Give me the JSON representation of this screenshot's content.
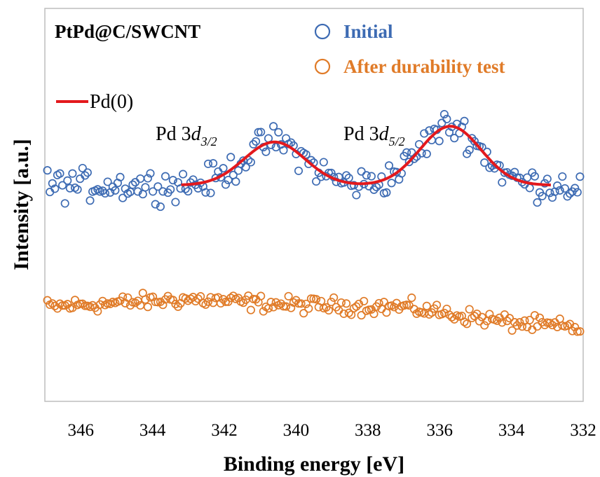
{
  "chart_data": {
    "type": "scatter",
    "sample_label": "PtPd@C/SWCNT",
    "xlabel": "Binding energy [eV]",
    "ylabel": "Intensity [a.u.]",
    "xlim": [
      347,
      332
    ],
    "x_reversed": true,
    "ylim": [
      0,
      100
    ],
    "y_ticks_shown": false,
    "x_ticks": [
      "346",
      "344",
      "342",
      "340",
      "338",
      "336",
      "334",
      "332"
    ],
    "x_tick_values": [
      346,
      344,
      342,
      340,
      338,
      336,
      334,
      332
    ],
    "grid": false,
    "legend_position": "top-right",
    "colors": {
      "initial": "#3d6bb3",
      "after": "#e07b28",
      "fit": "#e3191d"
    },
    "series": [
      {
        "name": "Initial",
        "marker": "open-circle",
        "baseline": 55,
        "noise": 3.5,
        "x_range": [
          347,
          332
        ],
        "step": 0.07,
        "peaks": [
          {
            "center": 340.6,
            "height": 11,
            "width": 0.85
          },
          {
            "center": 335.7,
            "height": 15,
            "width": 0.85
          }
        ]
      },
      {
        "name": "After durability test",
        "marker": "open-circle",
        "noise": 1.8,
        "x_range": [
          347,
          332
        ],
        "step": 0.07,
        "baseline_points": [
          [
            347,
            24
          ],
          [
            343,
            26
          ],
          [
            340,
            24.5
          ],
          [
            337,
            24
          ],
          [
            334,
            20
          ],
          [
            332,
            18.5
          ]
        ]
      },
      {
        "name": "Pd(0)",
        "type": "line",
        "x_range": [
          343.2,
          332.9
        ],
        "baseline": 55,
        "peaks": [
          {
            "center": 340.6,
            "height": 11,
            "width": 0.85
          },
          {
            "center": 335.7,
            "height": 15,
            "width": 0.85
          }
        ]
      }
    ],
    "annotations": [
      {
        "text": "Pd 3",
        "italic": "d",
        "sub": "3/2",
        "x": 340.6
      },
      {
        "text": "Pd 3",
        "italic": "d",
        "sub": "5/2",
        "x": 335.7
      }
    ]
  }
}
